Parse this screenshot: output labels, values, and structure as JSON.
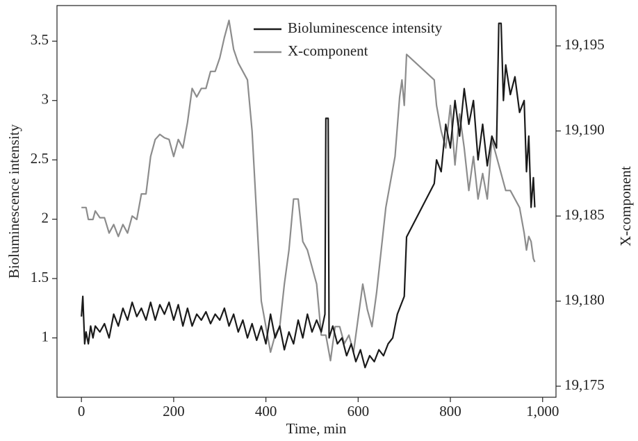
{
  "chart_data": {
    "type": "line",
    "x_label": "Time, min",
    "y_label": "Bioluminescence intensity",
    "y2_label": "X-component",
    "xlim": [
      -53,
      1029
    ],
    "xticks": [
      0,
      200,
      400,
      600,
      800,
      {
        "value": 1000,
        "label": "1,000"
      }
    ],
    "ylim": [
      0.5,
      3.8
    ],
    "yticks": [
      1.0,
      1.5,
      2.0,
      2.5,
      3.0,
      3.5
    ],
    "y2lim": [
      19174.35,
      19197.37
    ],
    "y2ticks": [
      {
        "value": 19175,
        "label": "19,175"
      },
      {
        "value": 19180,
        "label": "19,180"
      },
      {
        "value": 19185,
        "label": "19,185"
      },
      {
        "value": 19190,
        "label": "19,190"
      },
      {
        "value": 19195,
        "label": "19,195"
      }
    ],
    "series": [
      {
        "name": "Bioluminescence intensity",
        "color": "#1a1a1a",
        "x": [
          0,
          3,
          7,
          10,
          15,
          20,
          25,
          30,
          40,
          50,
          60,
          70,
          80,
          90,
          100,
          110,
          120,
          130,
          140,
          150,
          160,
          170,
          180,
          190,
          200,
          210,
          220,
          230,
          240,
          250,
          260,
          270,
          280,
          290,
          300,
          310,
          320,
          330,
          340,
          350,
          360,
          370,
          380,
          390,
          400,
          410,
          420,
          430,
          440,
          450,
          460,
          470,
          480,
          490,
          500,
          510,
          520,
          528,
          530,
          535,
          537,
          545,
          555,
          565,
          575,
          585,
          595,
          605,
          615,
          625,
          635,
          645,
          655,
          665,
          675,
          685,
          695,
          700,
          705,
          765,
          770,
          780,
          790,
          800,
          810,
          820,
          830,
          840,
          850,
          860,
          870,
          880,
          890,
          900,
          905,
          910,
          915,
          920,
          930,
          940,
          950,
          960,
          965,
          970,
          975,
          980,
          983
        ],
        "values": [
          1.18,
          1.35,
          0.95,
          1.05,
          0.95,
          1.1,
          1.0,
          1.1,
          1.05,
          1.12,
          1.0,
          1.2,
          1.1,
          1.25,
          1.15,
          1.3,
          1.18,
          1.25,
          1.15,
          1.3,
          1.15,
          1.28,
          1.2,
          1.3,
          1.15,
          1.28,
          1.1,
          1.25,
          1.1,
          1.2,
          1.15,
          1.22,
          1.12,
          1.2,
          1.15,
          1.25,
          1.1,
          1.2,
          1.05,
          1.15,
          1.0,
          1.12,
          0.98,
          1.1,
          0.95,
          1.2,
          1.0,
          1.1,
          0.9,
          1.05,
          0.95,
          1.15,
          1.0,
          1.2,
          1.05,
          1.15,
          1.05,
          1.2,
          2.85,
          2.85,
          1.0,
          1.1,
          0.95,
          1.0,
          0.85,
          0.95,
          0.8,
          0.9,
          0.75,
          0.85,
          0.8,
          0.9,
          0.85,
          0.95,
          1.0,
          1.2,
          1.3,
          1.35,
          1.85,
          2.3,
          2.5,
          2.4,
          2.8,
          2.6,
          3.0,
          2.7,
          3.1,
          2.8,
          3.0,
          2.5,
          2.8,
          2.45,
          2.7,
          2.6,
          3.65,
          3.65,
          3.0,
          3.3,
          3.05,
          3.2,
          2.9,
          3.0,
          2.4,
          2.7,
          2.1,
          2.35,
          2.1
        ]
      },
      {
        "name": "X-component",
        "color": "#8c8c8c",
        "axis": "y2",
        "x": [
          0,
          10,
          15,
          25,
          30,
          40,
          50,
          60,
          70,
          80,
          90,
          100,
          110,
          120,
          130,
          140,
          150,
          160,
          170,
          180,
          190,
          200,
          210,
          220,
          230,
          240,
          250,
          260,
          270,
          280,
          290,
          300,
          310,
          320,
          330,
          340,
          350,
          360,
          370,
          380,
          390,
          400,
          410,
          420,
          430,
          440,
          450,
          460,
          470,
          480,
          490,
          500,
          510,
          520,
          530,
          540,
          550,
          560,
          570,
          580,
          590,
          600,
          610,
          620,
          630,
          640,
          650,
          660,
          670,
          680,
          690,
          695,
          700,
          705,
          765,
          770,
          780,
          790,
          800,
          810,
          820,
          830,
          840,
          850,
          860,
          870,
          880,
          890,
          900,
          910,
          920,
          930,
          940,
          950,
          960,
          965,
          970,
          975,
          980,
          983
        ],
        "values": [
          19185.5,
          19185.5,
          19184.8,
          19184.8,
          19185.3,
          19184.9,
          19184.9,
          19184.0,
          19184.5,
          19183.8,
          19184.5,
          19184.0,
          19185.0,
          19184.8,
          19186.3,
          19186.3,
          19188.5,
          19189.5,
          19189.8,
          19189.6,
          19189.5,
          19188.5,
          19189.5,
          19189.0,
          19190.5,
          19192.5,
          19192.0,
          19192.5,
          19192.5,
          19193.5,
          19193.5,
          19194.3,
          19195.5,
          19196.5,
          19194.8,
          19194.0,
          19193.5,
          19193.0,
          19190.0,
          19185.0,
          19180.0,
          19178.5,
          19177.0,
          19178.0,
          19178.5,
          19181.0,
          19183.0,
          19186.0,
          19186.0,
          19183.5,
          19183.0,
          19182.0,
          19181.0,
          19178.0,
          19178.0,
          19176.5,
          19178.5,
          19178.5,
          19177.5,
          19178.0,
          19177.0,
          19179.0,
          19181.0,
          19179.5,
          19178.5,
          19180.5,
          19183.0,
          19185.5,
          19187.0,
          19188.5,
          19192.0,
          19193.0,
          19191.5,
          19194.5,
          19193.0,
          19191.5,
          19190.0,
          19189.0,
          19191.5,
          19188.0,
          19191.0,
          19189.0,
          19186.5,
          19188.5,
          19186.0,
          19187.5,
          19186.0,
          19189.5,
          19188.5,
          19187.5,
          19186.5,
          19186.5,
          19186.0,
          19185.5,
          19184.0,
          19183.0,
          19183.8,
          19183.5,
          19182.5,
          19182.3
        ]
      }
    ]
  }
}
